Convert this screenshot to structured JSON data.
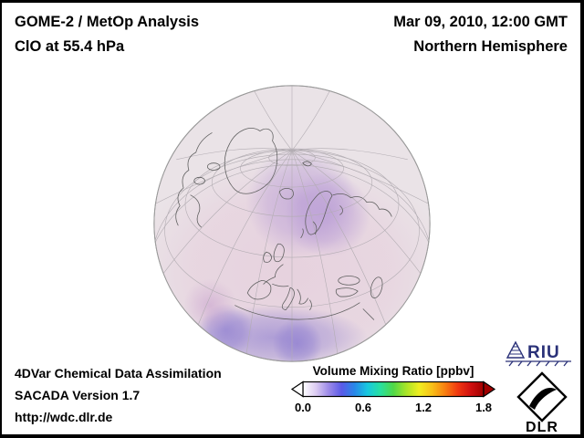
{
  "header": {
    "title": "GOME-2 / MetOp Analysis",
    "subtitle": "ClO at 55.4 hPa",
    "datetime": "Mar 09, 2010, 12:00 GMT",
    "region": "Northern Hemisphere"
  },
  "footer": {
    "line1": "4DVar Chemical Data Assimilation",
    "line2": "SACADA Version 1.7",
    "line3": "http://wdc.dlr.de"
  },
  "colorbar": {
    "title": "Volume Mixing Ratio [ppbv]",
    "ticks": [
      "0.0",
      "0.6",
      "1.2",
      "1.8"
    ],
    "range_min": 0.0,
    "range_max": 1.8,
    "gradient_colors": [
      "#ffffff",
      "#dcccf2",
      "#9c8ae8",
      "#5a5ae8",
      "#2888e8",
      "#18c8e0",
      "#28e0a0",
      "#50d848",
      "#a8e428",
      "#f0ee20",
      "#f8c018",
      "#f88010",
      "#f03810",
      "#d01010",
      "#a00000"
    ],
    "left_arrow_color": "#ffffff",
    "right_arrow_color": "#a00000"
  },
  "map": {
    "projection": "orthographic globe",
    "hemisphere": "Northern Hemisphere",
    "ocean_color": "#eae3e7",
    "rim_color": "#9a9a9a",
    "graticule_color": "#b2acb2",
    "coastline_color": "#5f5f5f",
    "field_wash_color": "#e4c6d8",
    "field_enhanced_color": "#b092d4",
    "field_edge_color": "#8070ce"
  },
  "logos": {
    "riu_text": "RIU",
    "dlr_text": "DLR"
  }
}
